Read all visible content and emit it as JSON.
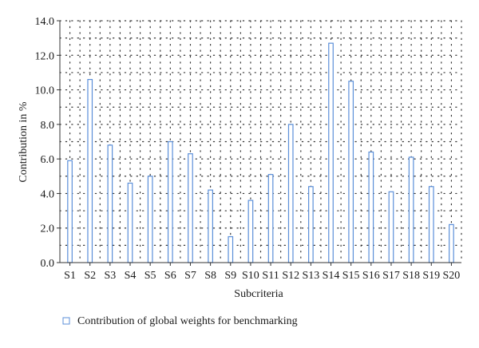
{
  "chart_data": {
    "type": "bar",
    "categories": [
      "S1",
      "S2",
      "S3",
      "S4",
      "S5",
      "S6",
      "S7",
      "S8",
      "S9",
      "S10",
      "S11",
      "S12",
      "S13",
      "S14",
      "S15",
      "S16",
      "S17",
      "S18",
      "S19",
      "S20"
    ],
    "series": [
      {
        "name": "Contribution of global weights for benchmarking",
        "values": [
          5.9,
          10.6,
          6.8,
          4.6,
          5.0,
          7.0,
          6.3,
          4.2,
          1.5,
          3.6,
          5.1,
          8.0,
          4.4,
          12.7,
          10.5,
          6.4,
          4.1,
          6.1,
          4.4,
          2.2
        ]
      }
    ],
    "ylim": [
      0,
      14
    ],
    "yticks": [
      "0.0",
      "2.0",
      "4.0",
      "6.0",
      "8.0",
      "10.0",
      "12.0",
      "14.0"
    ],
    "xlabel": "Subcriteria",
    "ylabel": "Contribution in %",
    "title": "",
    "grid": "dotted",
    "legend_position": "bottom-left",
    "colors": {
      "bar_stroke": "#5b8fd9",
      "bar_fill": "#ffffff",
      "axis": "#333333",
      "grid": "#333333"
    }
  }
}
